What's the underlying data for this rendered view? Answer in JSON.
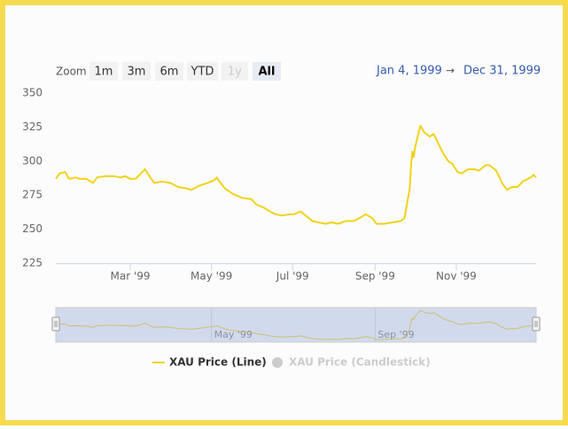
{
  "range_selector": {
    "label": "Zoom",
    "buttons": [
      "1m",
      "3m",
      "6m",
      "YTD",
      "1y",
      "All"
    ],
    "selected": 5,
    "disabled": [
      4
    ]
  },
  "date_range": {
    "from": "Jan 4, 1999",
    "separator": "→",
    "to": "Dec 31, 1999"
  },
  "chart_data": {
    "type": "line",
    "x": [
      "1999-01-04",
      "1999-01-07",
      "1999-01-11",
      "1999-01-14",
      "1999-01-19",
      "1999-01-22",
      "1999-01-27",
      "1999-02-01",
      "1999-02-04",
      "1999-02-10",
      "1999-02-16",
      "1999-02-22",
      "1999-02-25",
      "1999-03-01",
      "1999-03-05",
      "1999-03-10",
      "1999-03-12",
      "1999-03-16",
      "1999-03-19",
      "1999-03-25",
      "1999-03-31",
      "1999-04-06",
      "1999-04-12",
      "1999-04-16",
      "1999-04-22",
      "1999-04-28",
      "1999-05-03",
      "1999-05-05",
      "1999-05-07",
      "1999-05-11",
      "1999-05-17",
      "1999-05-24",
      "1999-05-31",
      "1999-06-04",
      "1999-06-09",
      "1999-06-14",
      "1999-06-18",
      "1999-06-23",
      "1999-06-29",
      "1999-07-02",
      "1999-07-07",
      "1999-07-12",
      "1999-07-16",
      "1999-07-20",
      "1999-07-26",
      "1999-07-30",
      "1999-08-04",
      "1999-08-10",
      "1999-08-16",
      "1999-08-20",
      "1999-08-25",
      "1999-08-30",
      "1999-09-02",
      "1999-09-08",
      "1999-09-14",
      "1999-09-20",
      "1999-09-23",
      "1999-09-27",
      "1999-09-28",
      "1999-09-29",
      "1999-09-30",
      "1999-10-01",
      "1999-10-05",
      "1999-10-08",
      "1999-10-12",
      "1999-10-15",
      "1999-10-19",
      "1999-10-22",
      "1999-10-26",
      "1999-10-29",
      "1999-11-02",
      "1999-11-05",
      "1999-11-10",
      "1999-11-15",
      "1999-11-18",
      "1999-11-23",
      "1999-11-26",
      "1999-12-01",
      "1999-12-06",
      "1999-12-09",
      "1999-12-13",
      "1999-12-17",
      "1999-12-21",
      "1999-12-27",
      "1999-12-29",
      "1999-12-31"
    ],
    "series": [
      {
        "name": "XAU Price (Line)",
        "color": "#f2d21b",
        "visible": true,
        "values": [
          287,
          291,
          292,
          287,
          288,
          287,
          287,
          284,
          288,
          289,
          289,
          288,
          289,
          287,
          287,
          292,
          294,
          288,
          284,
          285,
          284,
          281,
          280,
          279,
          282,
          284,
          286,
          288,
          285,
          280,
          276,
          273,
          272,
          268,
          266,
          263,
          261,
          260,
          261,
          261,
          263,
          259,
          256,
          255,
          254,
          255,
          254,
          256,
          256,
          258,
          261,
          258,
          254,
          254,
          255,
          256,
          258,
          280,
          297,
          307,
          303,
          310,
          326,
          321,
          318,
          320,
          312,
          306,
          300,
          298,
          292,
          291,
          294,
          294,
          293,
          297,
          297,
          293,
          283,
          279,
          281,
          281,
          285,
          288,
          290,
          288
        ]
      },
      {
        "name": "XAU Price (Candlestick)",
        "color": "#cccccc",
        "visible": false
      }
    ],
    "xlim": [
      "1999-01-04",
      "1999-12-31"
    ],
    "xticks": [
      {
        "value": "1999-03-01",
        "label": "Mar '99"
      },
      {
        "value": "1999-05-01",
        "label": "May '99"
      },
      {
        "value": "1999-07-01",
        "label": "Jul '99"
      },
      {
        "value": "1999-09-01",
        "label": "Sep '99"
      },
      {
        "value": "1999-11-01",
        "label": "Nov '99"
      }
    ],
    "ylim": [
      225,
      350
    ],
    "yticks": [
      225,
      250,
      275,
      300,
      325,
      350
    ],
    "grid": false,
    "navigator": {
      "xticks": [
        {
          "value": "1999-05-01",
          "label": "May '99"
        },
        {
          "value": "1999-09-01",
          "label": "Sep '99"
        }
      ]
    }
  }
}
